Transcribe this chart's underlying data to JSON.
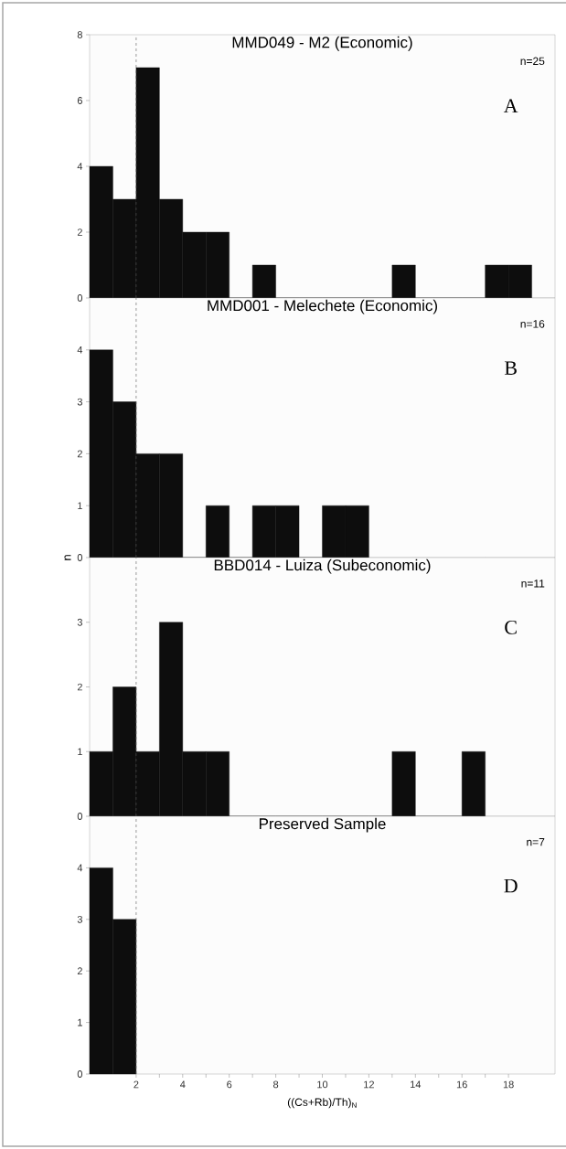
{
  "chart_data": [
    {
      "type": "histogram",
      "title": "MMD049 - M2 (Economic)",
      "bins": [
        0,
        1,
        2,
        3,
        4,
        5,
        6,
        7,
        8,
        9,
        10,
        11,
        12,
        13,
        14,
        15,
        16,
        17,
        18,
        19
      ],
      "values": [
        4,
        3,
        7,
        3,
        2,
        2,
        0,
        1,
        0,
        0,
        0,
        0,
        0,
        1,
        0,
        0,
        0,
        1,
        1
      ],
      "color": "#0d0d0d",
      "xlim": [
        0,
        20
      ],
      "xticks": [
        2,
        4,
        6,
        8,
        10,
        12,
        14,
        16,
        18
      ],
      "ylim": [
        0,
        8
      ],
      "yticks": [
        0,
        2,
        4,
        6,
        8
      ],
      "tick_labels": "y",
      "ref_lines": [
        {
          "axis": "x",
          "value": 2,
          "line_style": "dashed",
          "color": "#555555"
        }
      ],
      "annotations": [
        "n=25",
        "A"
      ]
    },
    {
      "type": "histogram",
      "title": "MMD001 - Melechete (Economic)",
      "ylabel": "n",
      "bins": [
        0,
        1,
        2,
        3,
        4,
        5,
        6,
        7,
        8,
        9,
        10,
        11,
        12
      ],
      "values": [
        4,
        3,
        2,
        2,
        0,
        1,
        0,
        1,
        1,
        0,
        1,
        1
      ],
      "color": "#0d0d0d",
      "xlim": [
        0,
        20
      ],
      "xticks": [
        2,
        4,
        6,
        8,
        10,
        12,
        14,
        16,
        18
      ],
      "ylim": [
        0,
        5
      ],
      "yticks": [
        0,
        1,
        2,
        3,
        4
      ],
      "tick_labels": "y",
      "ref_lines": [
        {
          "axis": "x",
          "value": 2,
          "line_style": "dashed",
          "color": "#555555"
        }
      ],
      "annotations": [
        "n=16",
        "B"
      ]
    },
    {
      "type": "histogram",
      "title": "BBD014 - Luiza (Subeconomic)",
      "bins": [
        0,
        1,
        2,
        3,
        4,
        5,
        6,
        7,
        8,
        9,
        10,
        11,
        12,
        13,
        14,
        15,
        16,
        17
      ],
      "values": [
        1,
        2,
        1,
        3,
        1,
        1,
        0,
        0,
        0,
        0,
        0,
        0,
        0,
        1,
        0,
        0,
        1
      ],
      "color": "#0d0d0d",
      "xlim": [
        0,
        20
      ],
      "xticks": [
        2,
        4,
        6,
        8,
        10,
        12,
        14,
        16,
        18
      ],
      "ylim": [
        0,
        4
      ],
      "yticks": [
        0,
        1,
        2,
        3
      ],
      "tick_labels": "y",
      "ref_lines": [
        {
          "axis": "x",
          "value": 2,
          "line_style": "dashed",
          "color": "#555555"
        }
      ],
      "annotations": [
        "n=11",
        "C"
      ]
    },
    {
      "type": "histogram",
      "title": "Preserved Sample",
      "xlabel": "((Cs+Rb)/Th)$_{N}$",
      "bins": [
        0,
        1,
        2
      ],
      "values": [
        4,
        3
      ],
      "color": "#0d0d0d",
      "xlim": [
        0,
        20
      ],
      "xticks": [
        2,
        4,
        6,
        8,
        10,
        12,
        14,
        16,
        18
      ],
      "ylim": [
        0,
        5
      ],
      "yticks": [
        0,
        1,
        2,
        3,
        4
      ],
      "ref_lines": [
        {
          "axis": "x",
          "value": 2,
          "line_style": "dashed",
          "color": "#555555"
        }
      ],
      "annotations": [
        "n=7",
        "D"
      ]
    }
  ]
}
